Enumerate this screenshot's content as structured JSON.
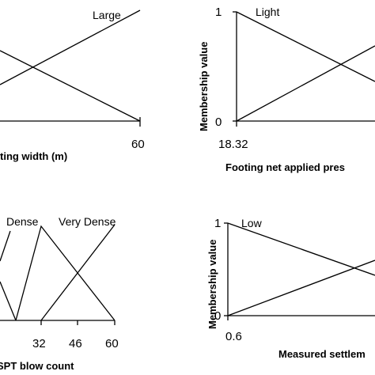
{
  "chart_data": [
    {
      "type": "line",
      "panel": "top-left",
      "xlabel": "ting width (m)",
      "ylabel": "",
      "x_ticks": [
        "60"
      ],
      "y_ticks": [],
      "series": [
        {
          "name": "Large",
          "points": [
            [
              0,
              0
            ],
            [
              60,
              1
            ]
          ]
        },
        {
          "points": [
            [
              0,
              1
            ],
            [
              60,
              0
            ]
          ]
        }
      ]
    },
    {
      "type": "line",
      "panel": "top-right",
      "xlabel": "Footing net applied pres",
      "ylabel": "Membership value",
      "x_ticks": [
        "18.32"
      ],
      "y_ticks": [
        "1",
        "0"
      ],
      "series": [
        {
          "name": "Light",
          "points": [
            [
              18.32,
              1
            ],
            [
              1,
              0
            ]
          ]
        },
        {
          "points": [
            [
              18.32,
              0
            ],
            [
              1,
              1
            ]
          ]
        }
      ]
    },
    {
      "type": "line",
      "panel": "bottom-left",
      "xlabel": "SPT blow count",
      "ylabel": "",
      "x_ticks": [
        "32",
        "46",
        "60"
      ],
      "y_ticks": [],
      "series": [
        {
          "name": "Dense",
          "points": [
            [
              20,
              0
            ],
            [
              32,
              1
            ],
            [
              60,
              0
            ]
          ]
        },
        {
          "name": "Very Dense",
          "points": [
            [
              32,
              0
            ],
            [
              60,
              1
            ]
          ]
        }
      ]
    },
    {
      "type": "line",
      "panel": "bottom-right",
      "xlabel": "Measured settlem",
      "ylabel": "Membership value",
      "x_ticks": [
        "0.6"
      ],
      "y_ticks": [
        "1",
        "0"
      ],
      "series": [
        {
          "name": "Low",
          "points": [
            [
              0.6,
              1
            ],
            [
              1,
              0
            ]
          ]
        },
        {
          "points": [
            [
              0.6,
              0
            ],
            [
              1,
              1
            ]
          ]
        }
      ]
    }
  ]
}
